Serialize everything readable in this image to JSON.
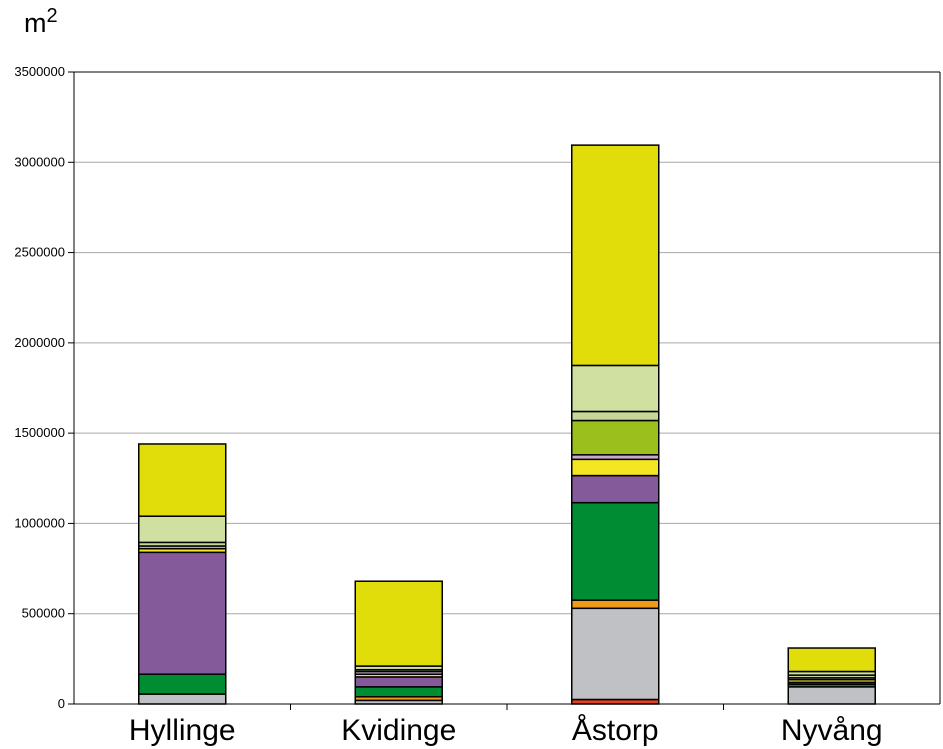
{
  "chart_data": {
    "type": "bar",
    "stacked": true,
    "unit": {
      "base": "m",
      "exponent": "2"
    },
    "categories": [
      "Hyllinge",
      "Kvidinge",
      "Åstorp",
      "Nyvång"
    ],
    "ylim": [
      0,
      3500000
    ],
    "yticks": [
      0,
      500000,
      1000000,
      1500000,
      2000000,
      2500000,
      3000000,
      3500000
    ],
    "ytick_labels": [
      "0",
      "500000",
      "1000000",
      "1500000",
      "2000000",
      "2500000",
      "3000000",
      "3500000"
    ],
    "grid": true,
    "legend": "none",
    "series_colors": [
      "#e0441f",
      "#c0c1c4",
      "#f09a1a",
      "#008c33",
      "#845a9a",
      "#f5e624",
      "#c9a9cc",
      "#9bbf1d",
      "#c6d79a",
      "#cfe0a0",
      "#e1dd0b"
    ],
    "series": [
      {
        "values": [
          0,
          0,
          25000,
          0
        ]
      },
      {
        "values": [
          55000,
          20000,
          505000,
          95000
        ]
      },
      {
        "values": [
          0,
          20000,
          45000,
          0
        ]
      },
      {
        "values": [
          110000,
          55000,
          540000,
          15000
        ]
      },
      {
        "values": [
          675000,
          55000,
          150000,
          10000
        ]
      },
      {
        "values": [
          20000,
          15000,
          90000,
          15000
        ]
      },
      {
        "values": [
          15000,
          15000,
          25000,
          10000
        ]
      },
      {
        "values": [
          0,
          0,
          190000,
          0
        ]
      },
      {
        "values": [
          20000,
          10000,
          50000,
          15000
        ]
      },
      {
        "values": [
          145000,
          20000,
          255000,
          20000
        ]
      },
      {
        "values": [
          400000,
          470000,
          1220000,
          130000
        ]
      }
    ]
  }
}
